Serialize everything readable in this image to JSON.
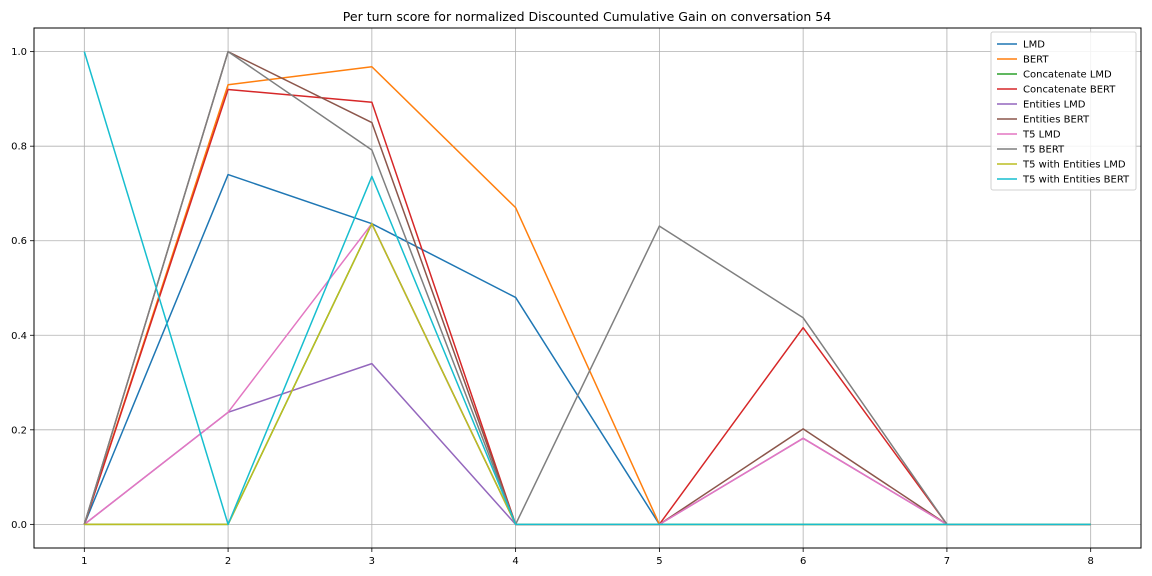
{
  "chart_data": {
    "type": "line",
    "title": "Per turn score for normalized Discounted Cumulative Gain on conversation 54",
    "xlabel": "",
    "ylabel": "",
    "x": [
      1,
      2,
      3,
      4,
      5,
      6,
      7,
      8
    ],
    "xlim": [
      0.65,
      8.35
    ],
    "ylim": [
      -0.05,
      1.05
    ],
    "xticks": [
      1,
      2,
      3,
      4,
      5,
      6,
      7,
      8
    ],
    "yticks": [
      0.0,
      0.2,
      0.4,
      0.6,
      0.8,
      1.0
    ],
    "ytick_labels": [
      "0.0",
      "0.2",
      "0.4",
      "0.6",
      "0.8",
      "1.0"
    ],
    "grid": true,
    "legend_position": "top-right",
    "series": [
      {
        "name": "LMD",
        "color": "#1f77b4",
        "values": [
          0.0,
          0.74,
          0.636,
          0.48,
          0.0,
          0.0,
          0.0,
          0.0
        ]
      },
      {
        "name": "BERT",
        "color": "#ff7f0e",
        "values": [
          0.0,
          0.93,
          0.968,
          0.67,
          0.0,
          0.0,
          0.0,
          0.0
        ]
      },
      {
        "name": "Concatenate LMD",
        "color": "#2ca02c",
        "values": [
          0.0,
          0.0,
          0.636,
          0.0,
          0.0,
          0.0,
          0.0,
          0.0
        ]
      },
      {
        "name": "Concatenate BERT",
        "color": "#d62728",
        "values": [
          0.0,
          0.92,
          0.893,
          0.0,
          0.0,
          0.416,
          0.0,
          0.0
        ]
      },
      {
        "name": "Entities LMD",
        "color": "#9467bd",
        "values": [
          0.0,
          0.237,
          0.34,
          0.0,
          0.0,
          0.182,
          0.0,
          0.0
        ]
      },
      {
        "name": "Entities BERT",
        "color": "#8c564b",
        "values": [
          0.0,
          1.0,
          0.85,
          0.0,
          0.0,
          0.202,
          0.0,
          0.0
        ]
      },
      {
        "name": "T5 LMD",
        "color": "#e377c2",
        "values": [
          0.0,
          0.237,
          0.636,
          0.0,
          0.0,
          0.182,
          0.0,
          0.0
        ]
      },
      {
        "name": "T5 BERT",
        "color": "#7f7f7f",
        "values": [
          0.0,
          1.0,
          0.792,
          0.0,
          0.631,
          0.437,
          0.0,
          0.0
        ]
      },
      {
        "name": "T5 with Entities LMD",
        "color": "#bcbd22",
        "values": [
          0.0,
          0.0,
          0.636,
          0.0,
          0.0,
          0.0,
          0.0,
          0.0
        ]
      },
      {
        "name": "T5 with Entities BERT",
        "color": "#17becf",
        "values": [
          1.0,
          0.0,
          0.736,
          0.0,
          0.0,
          0.0,
          0.0,
          0.0
        ]
      }
    ]
  }
}
